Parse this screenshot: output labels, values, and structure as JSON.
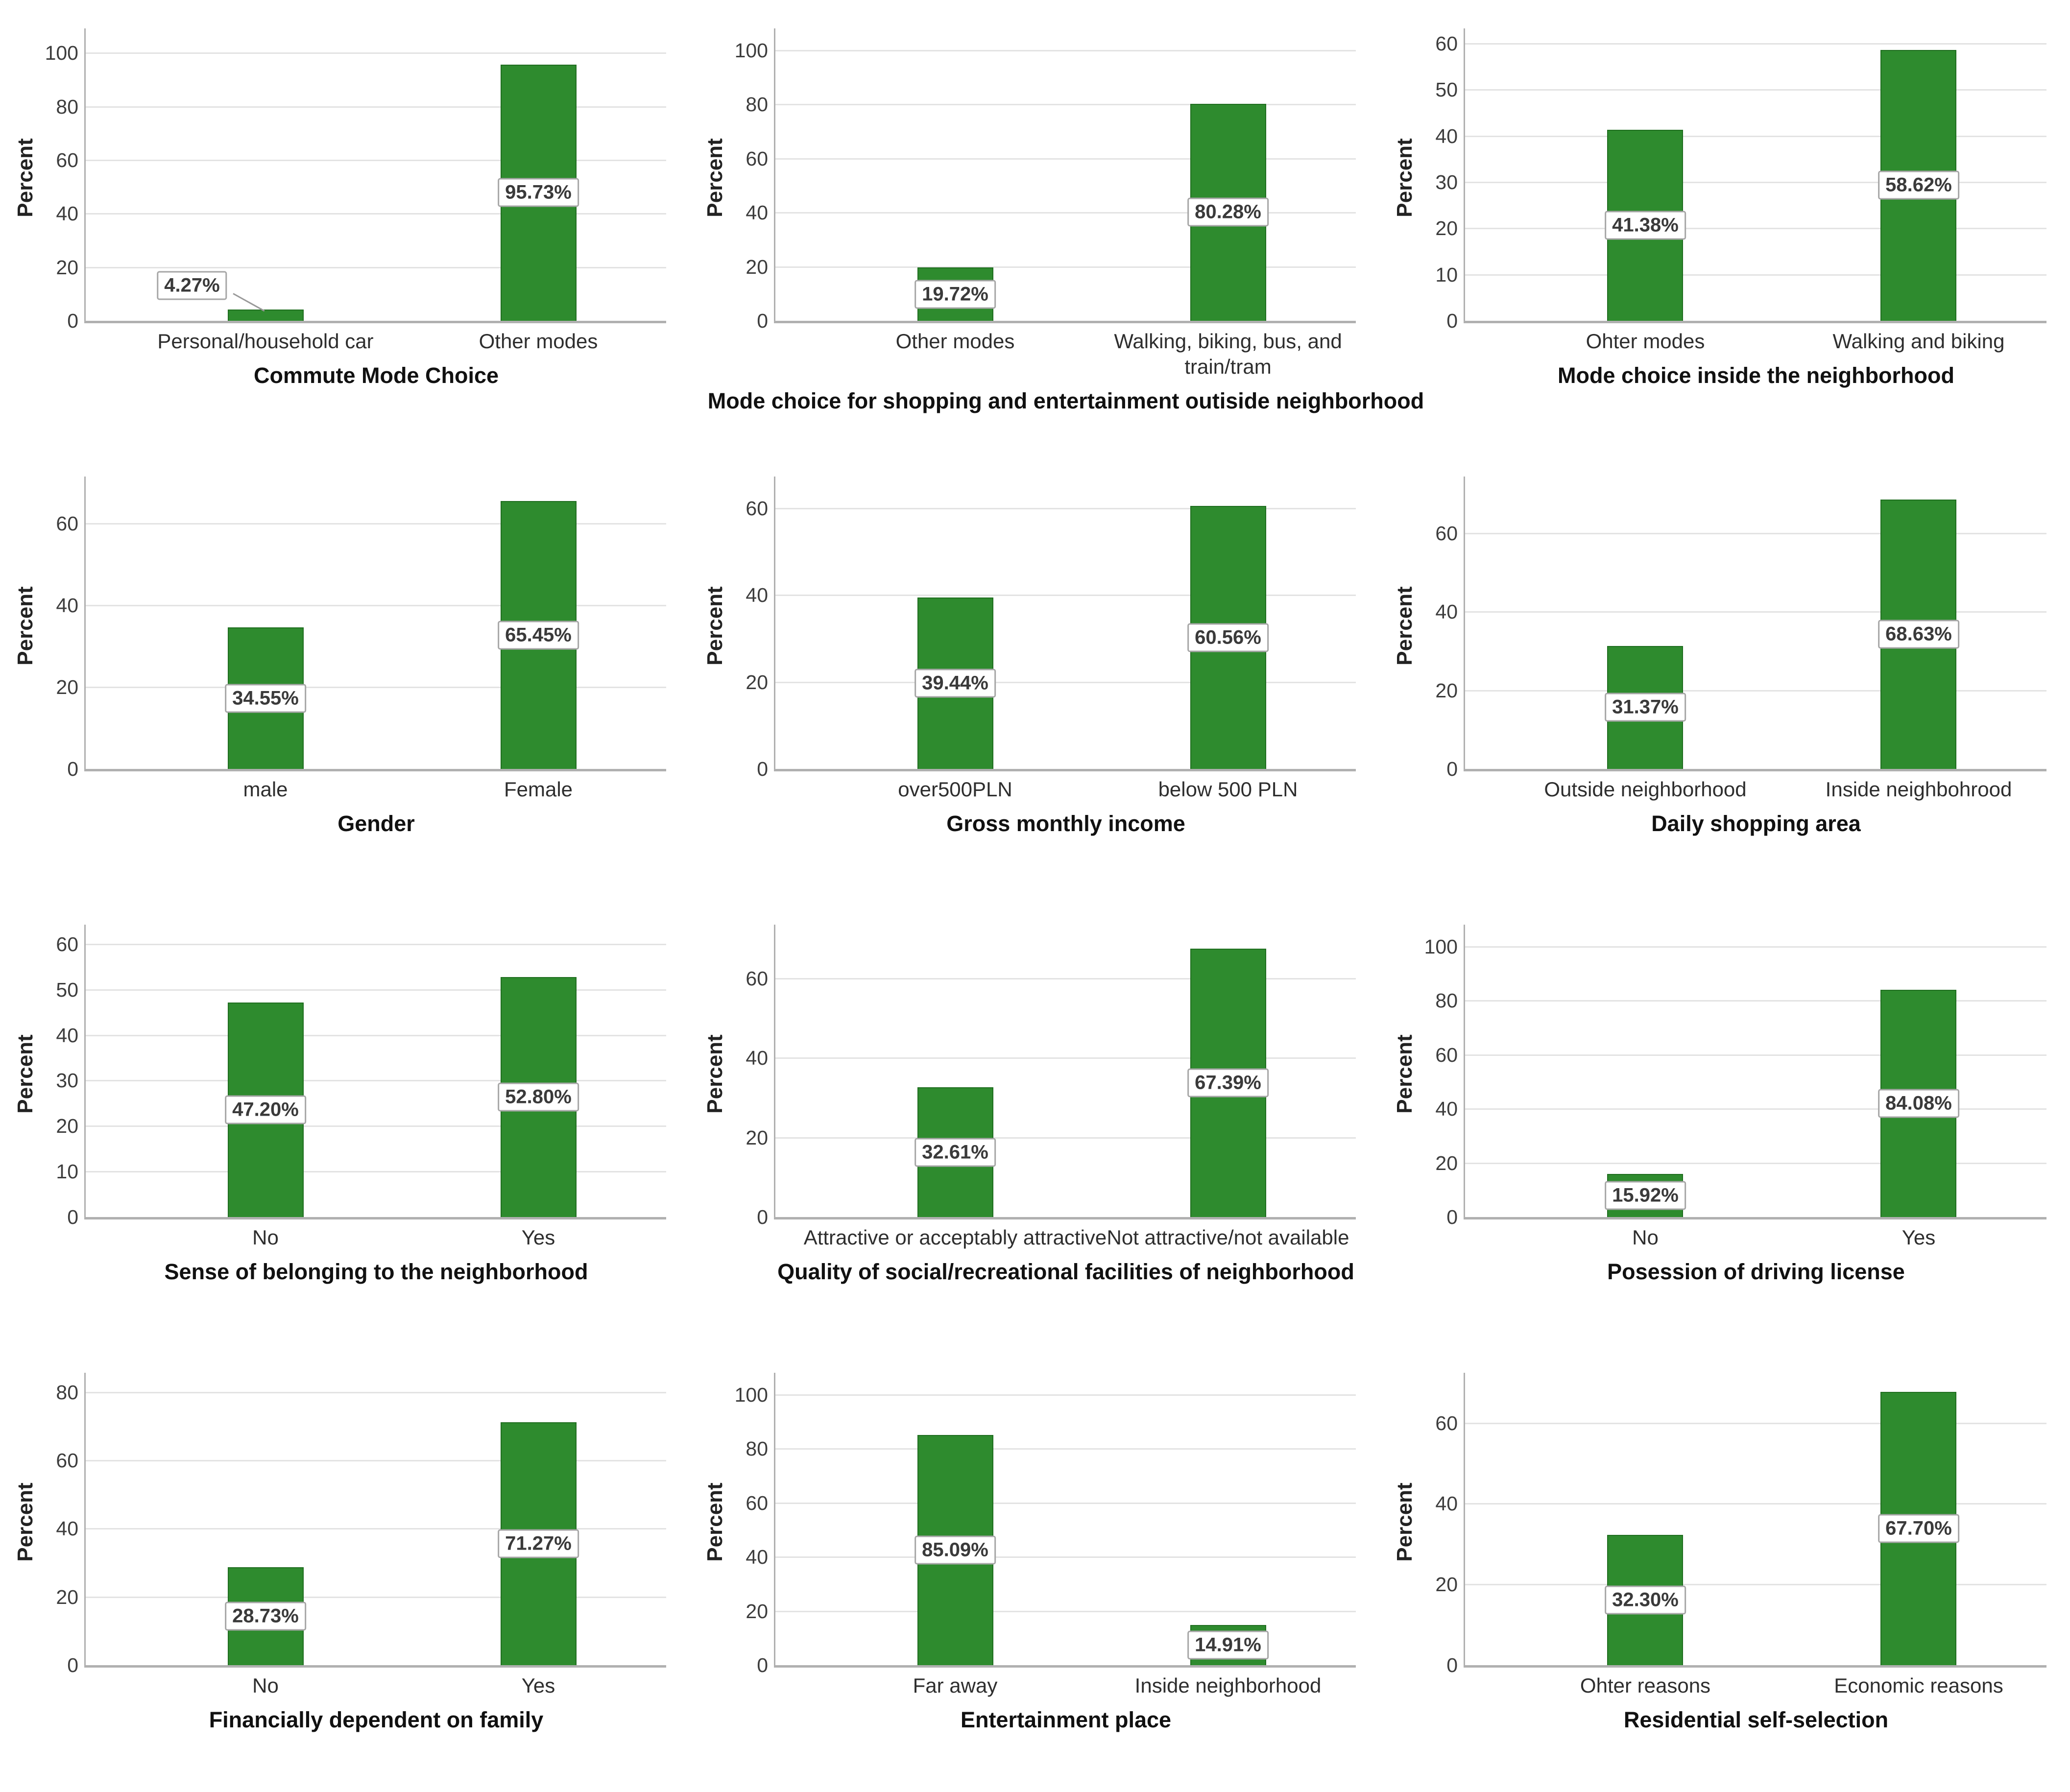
{
  "figure": {
    "background": "#ffffff",
    "y_axis_title": "Percent"
  },
  "colors": {
    "bar_fill": "#2e8b2e",
    "bar_edge": "#1f6e1f",
    "gridline": "#e3e3e3",
    "axis_line": "#b0b0b0",
    "value_box_border": "#a6a6a6",
    "value_box_bg": "#ffffff",
    "value_text": "#3a3a3a",
    "tick_text": "#3d3d3d",
    "category_text": "#2e2e2e",
    "title_text": "#111111",
    "ylabel_text": "#222222",
    "callout_line": "#999999"
  },
  "chart_data": [
    {
      "type": "bar",
      "title": "Commute Mode Choice",
      "ylabel": "Percent",
      "categories": [
        "Personal/household car",
        "Other modes"
      ],
      "values": [
        4.27,
        95.73
      ],
      "value_labels": [
        "4.27%",
        "95.73%"
      ],
      "yticks": [
        0,
        20,
        40,
        60,
        80,
        100
      ],
      "ylim": [
        0,
        107
      ],
      "grid": true,
      "legend": "none",
      "callout_bar_index": 0
    },
    {
      "type": "bar",
      "title": "Mode choice for shopping and entertainment outiside neighborhood",
      "ylabel": "Percent",
      "categories": [
        "Other modes",
        "Walking, biking, bus, and train/tram"
      ],
      "values": [
        19.72,
        80.28
      ],
      "value_labels": [
        "19.72%",
        "80.28%"
      ],
      "yticks": [
        0,
        20,
        40,
        60,
        80,
        100
      ],
      "ylim": [
        0,
        106
      ],
      "grid": true,
      "legend": "none"
    },
    {
      "type": "bar",
      "title": "Mode choice inside the neighborhood",
      "ylabel": "Percent",
      "categories": [
        "Ohter modes",
        "Walking and biking"
      ],
      "values": [
        41.38,
        58.62
      ],
      "value_labels": [
        "41.38%",
        "58.62%"
      ],
      "yticks": [
        0,
        10,
        20,
        30,
        40,
        50,
        60
      ],
      "ylim": [
        0,
        62
      ],
      "grid": true,
      "legend": "none"
    },
    {
      "type": "bar",
      "title": "Gender",
      "ylabel": "Percent",
      "categories": [
        "male",
        "Female"
      ],
      "values": [
        34.55,
        65.45
      ],
      "value_labels": [
        "34.55%",
        "65.45%"
      ],
      "yticks": [
        0,
        20,
        40,
        60
      ],
      "ylim": [
        0,
        70
      ],
      "grid": true,
      "legend": "none"
    },
    {
      "type": "bar",
      "title": "Gross monthly income",
      "ylabel": "Percent",
      "categories": [
        "over500PLN",
        "below 500 PLN"
      ],
      "values": [
        39.44,
        60.56
      ],
      "value_labels": [
        "39.44%",
        "60.56%"
      ],
      "yticks": [
        0,
        20,
        40,
        60
      ],
      "ylim": [
        0,
        66
      ],
      "grid": true,
      "legend": "none"
    },
    {
      "type": "bar",
      "title": "Daily shopping area",
      "ylabel": "Percent",
      "categories": [
        "Outside neighborhood",
        "Inside neighbohrood"
      ],
      "values": [
        31.37,
        68.63
      ],
      "value_labels": [
        "31.37%",
        "68.63%"
      ],
      "yticks": [
        0,
        20,
        40,
        60
      ],
      "ylim": [
        0,
        73
      ],
      "grid": true,
      "legend": "none"
    },
    {
      "type": "bar",
      "title": "Sense of belonging to the neighborhood",
      "ylabel": "Percent",
      "categories": [
        "No",
        "Yes"
      ],
      "values": [
        47.2,
        52.8
      ],
      "value_labels": [
        "47.20%",
        "52.80%"
      ],
      "yticks": [
        0,
        10,
        20,
        30,
        40,
        50,
        60
      ],
      "ylim": [
        0,
        63
      ],
      "grid": true,
      "legend": "none"
    },
    {
      "type": "bar",
      "title": "Quality of social/recreational facilities of neighborhood",
      "ylabel": "Percent",
      "categories": [
        "Attractive or acceptably attractive",
        "Not attractive/not available"
      ],
      "values": [
        32.61,
        67.39
      ],
      "value_labels": [
        "32.61%",
        "67.39%"
      ],
      "yticks": [
        0,
        20,
        40,
        60
      ],
      "ylim": [
        0,
        72
      ],
      "grid": true,
      "legend": "none"
    },
    {
      "type": "bar",
      "title": "Posession of driving license",
      "ylabel": "Percent",
      "categories": [
        "No",
        "Yes"
      ],
      "values": [
        15.92,
        84.08
      ],
      "value_labels": [
        "15.92%",
        "84.08%"
      ],
      "yticks": [
        0,
        20,
        40,
        60,
        80,
        100
      ],
      "ylim": [
        0,
        106
      ],
      "grid": true,
      "legend": "none"
    },
    {
      "type": "bar",
      "title": "Financially dependent on family",
      "ylabel": "Percent",
      "categories": [
        "No",
        "Yes"
      ],
      "values": [
        28.73,
        71.27
      ],
      "value_labels": [
        "28.73%",
        "71.27%"
      ],
      "yticks": [
        0,
        20,
        40,
        60,
        80
      ],
      "ylim": [
        0,
        84
      ],
      "grid": true,
      "legend": "none"
    },
    {
      "type": "bar",
      "title": "Entertainment place",
      "ylabel": "Percent",
      "categories": [
        "Far away",
        "Inside neighborhood"
      ],
      "values": [
        85.09,
        14.91
      ],
      "value_labels": [
        "85.09%",
        "14.91%"
      ],
      "yticks": [
        0,
        20,
        40,
        60,
        80,
        100
      ],
      "ylim": [
        0,
        106
      ],
      "grid": true,
      "legend": "none"
    },
    {
      "type": "bar",
      "title": "Residential self-selection",
      "ylabel": "Percent",
      "categories": [
        "Ohter reasons",
        "Economic reasons"
      ],
      "values": [
        32.3,
        67.7
      ],
      "value_labels": [
        "32.30%",
        "67.70%"
      ],
      "yticks": [
        0,
        20,
        40,
        60
      ],
      "ylim": [
        0,
        71
      ],
      "grid": true,
      "legend": "none"
    }
  ]
}
